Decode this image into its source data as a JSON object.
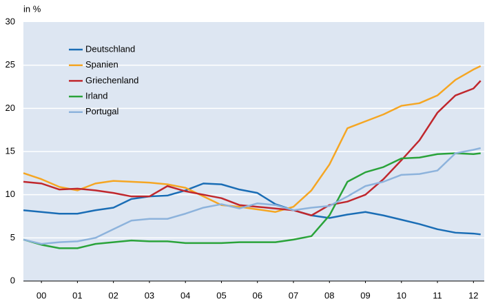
{
  "chart_data": {
    "type": "line",
    "y_label": "in %",
    "x": [
      0,
      0.5,
      1,
      1.5,
      2,
      2.5,
      3,
      3.5,
      4,
      4.5,
      5,
      5.5,
      6,
      6.5,
      7,
      7.5,
      8,
      8.5,
      9,
      9.5,
      10,
      10.5,
      11,
      11.5,
      12,
      12.5,
      12.7
    ],
    "xlim": [
      0,
      12.8
    ],
    "xticks": [
      {
        "value": 0.5,
        "label": "00"
      },
      {
        "value": 1.5,
        "label": "01"
      },
      {
        "value": 2.5,
        "label": "02"
      },
      {
        "value": 3.5,
        "label": "03"
      },
      {
        "value": 4.5,
        "label": "04"
      },
      {
        "value": 5.5,
        "label": "05"
      },
      {
        "value": 6.5,
        "label": "06"
      },
      {
        "value": 7.5,
        "label": "07"
      },
      {
        "value": 8.5,
        "label": "08"
      },
      {
        "value": 9.5,
        "label": "09"
      },
      {
        "value": 10.5,
        "label": "10"
      },
      {
        "value": 11.5,
        "label": "11"
      },
      {
        "value": 12.5,
        "label": "12"
      }
    ],
    "ylim": [
      0,
      30
    ],
    "yticks": [
      0,
      5,
      10,
      15,
      20,
      25,
      30
    ],
    "grid": true,
    "legend": "upper left",
    "series": [
      {
        "name": "Deutschland",
        "color": "#1a6db5",
        "values": [
          8.2,
          8.0,
          7.8,
          7.8,
          8.2,
          8.5,
          9.5,
          9.8,
          9.9,
          10.5,
          11.3,
          11.2,
          10.6,
          10.2,
          8.9,
          8.2,
          7.6,
          7.3,
          7.7,
          8.0,
          7.6,
          7.1,
          6.6,
          6.0,
          5.6,
          5.5,
          5.4
        ]
      },
      {
        "name": "Spanien",
        "color": "#f5a623",
        "values": [
          12.5,
          11.8,
          10.9,
          10.5,
          11.3,
          11.6,
          11.5,
          11.4,
          11.2,
          10.8,
          9.8,
          8.8,
          8.6,
          8.3,
          8.0,
          8.6,
          10.5,
          13.5,
          17.7,
          18.5,
          19.3,
          20.3,
          20.6,
          21.5,
          23.3,
          24.5,
          24.9
        ]
      },
      {
        "name": "Griechenland",
        "color": "#c0272d",
        "values": [
          11.5,
          11.3,
          10.6,
          10.7,
          10.5,
          10.2,
          9.8,
          9.8,
          11.0,
          10.4,
          10.0,
          9.6,
          8.8,
          8.6,
          8.4,
          8.2,
          7.6,
          8.8,
          9.2,
          10.0,
          11.8,
          14.0,
          16.3,
          19.5,
          21.5,
          22.3,
          23.2
        ]
      },
      {
        "name": "Irland",
        "color": "#2aa33a",
        "values": [
          4.8,
          4.2,
          3.8,
          3.8,
          4.3,
          4.5,
          4.7,
          4.6,
          4.6,
          4.4,
          4.4,
          4.4,
          4.5,
          4.5,
          4.5,
          4.8,
          5.2,
          7.6,
          11.5,
          12.6,
          13.2,
          14.2,
          14.3,
          14.7,
          14.8,
          14.7,
          14.8
        ]
      },
      {
        "name": "Portugal",
        "color": "#8db3dc",
        "values": [
          4.8,
          4.3,
          4.5,
          4.6,
          5.0,
          6.0,
          7.0,
          7.2,
          7.2,
          7.8,
          8.5,
          8.9,
          8.4,
          9.0,
          8.8,
          8.2,
          8.5,
          8.7,
          9.8,
          11.0,
          11.5,
          12.3,
          12.4,
          12.8,
          14.8,
          15.2,
          15.4
        ]
      }
    ]
  }
}
